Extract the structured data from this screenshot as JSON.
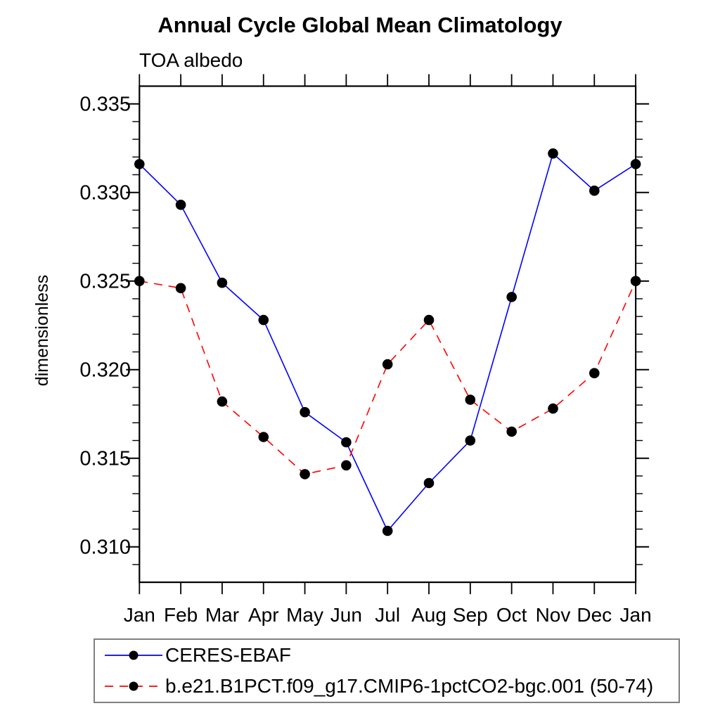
{
  "title": "Annual Cycle Global Mean Climatology",
  "subtitle": "TOA albedo",
  "axes": {
    "ylabel": "dimensionless",
    "ytick_labels": [
      "0.310",
      "0.315",
      "0.320",
      "0.325",
      "0.330",
      "0.335"
    ],
    "xtick_labels": [
      "Jan",
      "Feb",
      "Mar",
      "Apr",
      "May",
      "Jun",
      "Jul",
      "Aug",
      "Sep",
      "Oct",
      "Nov",
      "Dec",
      "Jan"
    ]
  },
  "legend": {
    "entries": [
      {
        "label": "CERES-EBAF"
      },
      {
        "label": "b.e21.B1PCT.f09_g17.CMIP6-1pctCO2-bgc.001 (50-74)"
      }
    ]
  },
  "colors": {
    "series1": "#0000ff",
    "series2": "#ff0000",
    "marker": "#000000",
    "axis": "#000000",
    "legend_border": "#808080"
  },
  "chart_data": {
    "type": "line",
    "title": "Annual Cycle Global Mean Climatology",
    "subtitle": "TOA albedo",
    "xlabel": "",
    "ylabel": "dimensionless",
    "categories": [
      "Jan",
      "Feb",
      "Mar",
      "Apr",
      "May",
      "Jun",
      "Jul",
      "Aug",
      "Sep",
      "Oct",
      "Nov",
      "Dec",
      "Jan"
    ],
    "ylim": [
      0.308,
      0.336
    ],
    "yticks_major": [
      0.31,
      0.315,
      0.32,
      0.325,
      0.33,
      0.335
    ],
    "ytick_minor_step": 0.001,
    "grid": false,
    "legend_position": "bottom",
    "marker": "circle",
    "marker_color": "#000000",
    "series": [
      {
        "name": "CERES-EBAF",
        "color": "#0000ff",
        "style": "solid",
        "values": [
          0.3316,
          0.3293,
          0.3249,
          0.3228,
          0.3176,
          0.3159,
          0.3109,
          0.3136,
          0.316,
          0.3241,
          0.3322,
          0.3301,
          0.3316
        ]
      },
      {
        "name": "b.e21.B1PCT.f09_g17.CMIP6-1pctCO2-bgc.001 (50-74)",
        "color": "#ff0000",
        "style": "dashed",
        "values": [
          0.325,
          0.3246,
          0.3182,
          0.3162,
          0.3141,
          0.3146,
          0.3203,
          0.3228,
          0.3183,
          0.3165,
          0.3178,
          0.3198,
          0.325
        ]
      }
    ]
  }
}
